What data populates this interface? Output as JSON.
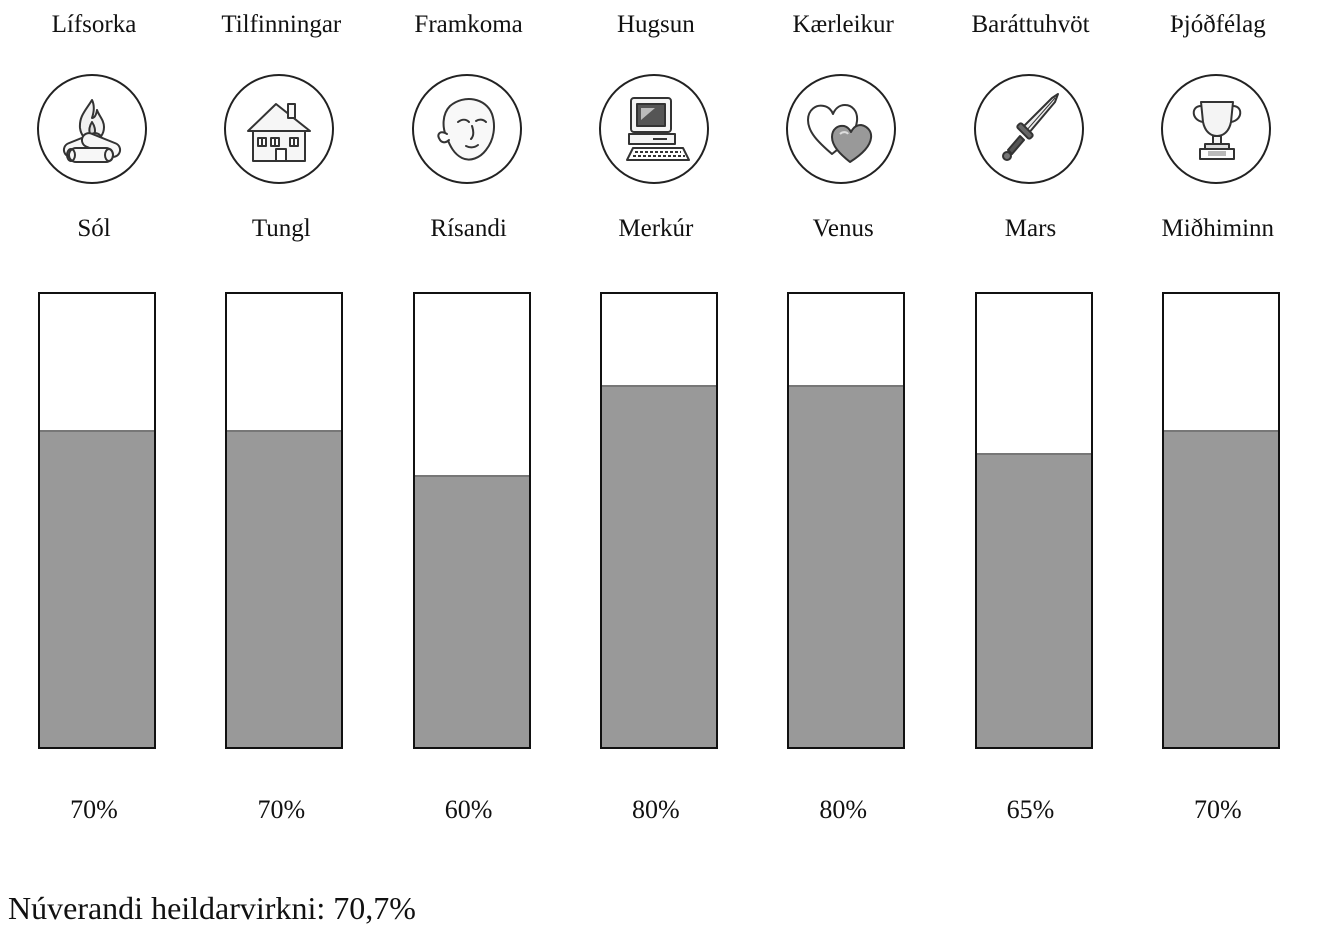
{
  "chart_data": {
    "type": "bar",
    "categories": [
      "Lífsorka",
      "Tilfinningar",
      "Framkoma",
      "Hugsun",
      "Kærleikur",
      "Baráttuhvöt",
      "Þjóðfélag"
    ],
    "planets": [
      "Sól",
      "Tungl",
      "Rísandi",
      "Merkúr",
      "Venus",
      "Mars",
      "Miðhiminn"
    ],
    "icons": [
      "campfire-icon",
      "house-icon",
      "mask-face-icon",
      "computer-icon",
      "hearts-icon",
      "dagger-icon",
      "trophy-icon"
    ],
    "values": [
      70,
      70,
      60,
      80,
      80,
      65,
      70
    ],
    "value_labels": [
      "70%",
      "70%",
      "60%",
      "80%",
      "80%",
      "65%",
      "70%"
    ],
    "ylim": [
      0,
      100
    ],
    "fill_color": "#999999",
    "empty_color": "#ffffff",
    "border_color": "#111111"
  },
  "summary": {
    "text": "Núverandi heildarvirkni: 70,7%"
  }
}
